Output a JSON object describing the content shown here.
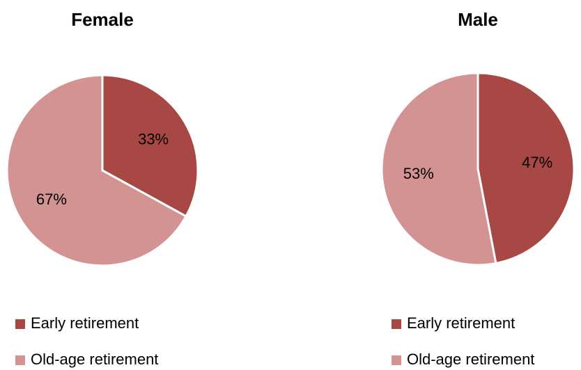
{
  "chart_data": [
    {
      "type": "pie",
      "title": "Female",
      "categories": [
        "Early retirement",
        "Old-age retirement"
      ],
      "values": [
        33,
        67
      ],
      "value_labels": [
        "33%",
        "67%"
      ],
      "colors": [
        "#a84845",
        "#d39392"
      ]
    },
    {
      "type": "pie",
      "title": "Male",
      "categories": [
        "Early retirement",
        "Old-age retirement"
      ],
      "values": [
        47,
        53
      ],
      "value_labels": [
        "47%",
        "53%"
      ],
      "colors": [
        "#a84845",
        "#d39392"
      ]
    }
  ]
}
